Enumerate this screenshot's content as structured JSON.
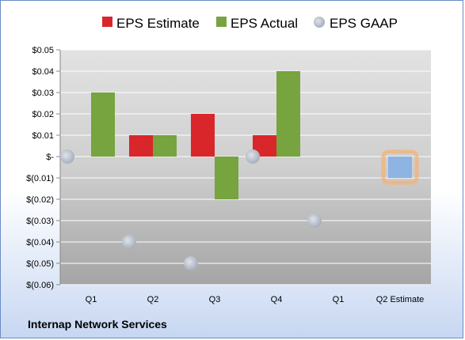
{
  "company": "Internap Network Services",
  "chart_data": {
    "type": "bar",
    "categories": [
      "Q1",
      "Q2",
      "Q3",
      "Q4",
      "Q1",
      "Q2 Estimate"
    ],
    "ylim": [
      -0.06,
      0.05
    ],
    "yticks": [
      0.05,
      0.04,
      0.03,
      0.02,
      0.01,
      0,
      -0.01,
      -0.02,
      -0.03,
      -0.04,
      -0.05,
      -0.06
    ],
    "ytick_labels": [
      "$0.05",
      "$0.04",
      "$0.03",
      "$0.02",
      "$0.01",
      "$-",
      "$(0.01)",
      "$(0.02)",
      "$(0.03)",
      "$(0.04)",
      "$(0.05)",
      "$(0.06)"
    ],
    "grid": true,
    "legend_placement": "top",
    "series": [
      {
        "name": "EPS Estimate",
        "kind": "bar",
        "color": "#d9262b",
        "values": [
          null,
          0.01,
          0.02,
          0.01,
          null,
          null
        ]
      },
      {
        "name": "EPS Actual",
        "kind": "bar",
        "color": "#77a43e",
        "values": [
          0.03,
          0.01,
          -0.02,
          0.04,
          null,
          null
        ]
      },
      {
        "name": "EPS GAAP",
        "kind": "point",
        "color": "#b4bcc8",
        "values": [
          0,
          -0.04,
          -0.05,
          0,
          -0.03,
          null
        ]
      }
    ],
    "highlight": {
      "category_index": 5,
      "value": -0.01,
      "color": "#8eb4e3",
      "glow": "#f5b070"
    }
  }
}
